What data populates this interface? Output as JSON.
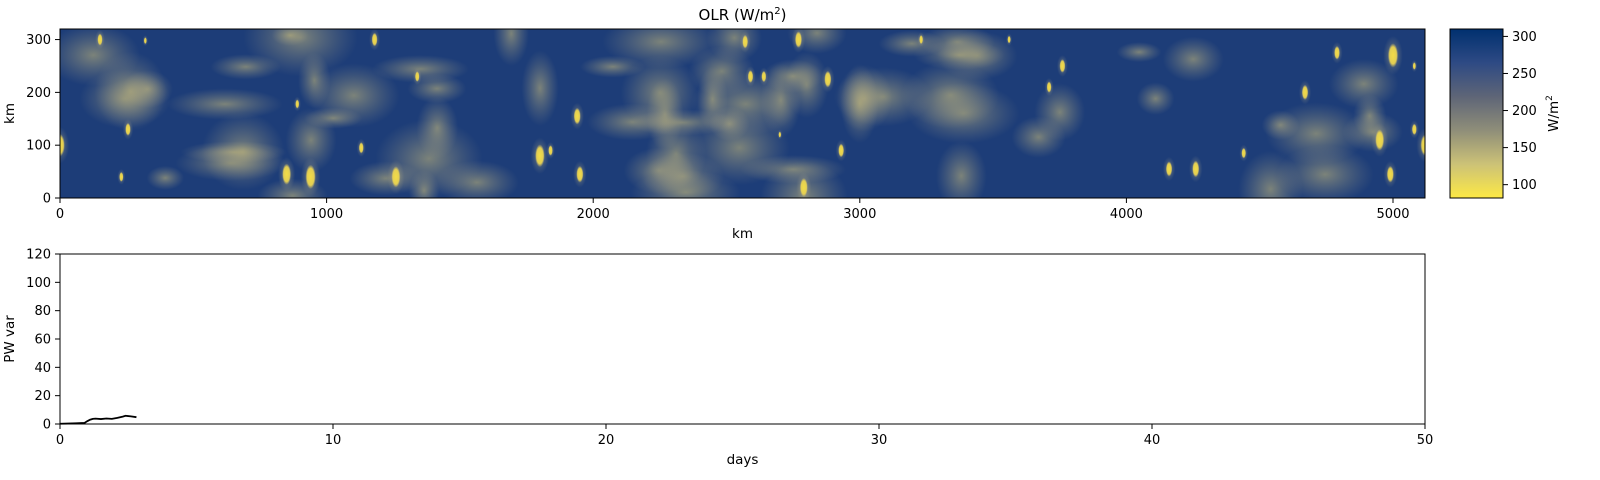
{
  "chart_data": [
    {
      "type": "heatmap",
      "title": "OLR (W/m",
      "title_sup": "2",
      "title_end": ")",
      "xlabel": "km",
      "ylabel": "km",
      "xlim": [
        0,
        5120
      ],
      "ylim": [
        0,
        320
      ],
      "xticks": [
        0,
        1000,
        2000,
        3000,
        4000,
        5000
      ],
      "yticks": [
        0,
        100,
        200,
        300
      ],
      "colormap": "cividis_r",
      "colormap_stops": [
        "#fde945",
        "#ccc277",
        "#8f8e79",
        "#5e6577",
        "#2e4a84",
        "#00306f"
      ],
      "colorbar": {
        "label": "W/m",
        "label_sup": "2",
        "range": [
          82,
          310
        ],
        "ticks": [
          100,
          150,
          200,
          250,
          300
        ]
      },
      "grid": false,
      "convective_cells": [
        {
          "x": 0,
          "y": 100,
          "r": 30
        },
        {
          "x": 150,
          "y": 300,
          "r": 16
        },
        {
          "x": 255,
          "y": 130,
          "r": 17
        },
        {
          "x": 230,
          "y": 40,
          "r": 13
        },
        {
          "x": 320,
          "y": 298,
          "r": 9
        },
        {
          "x": 850,
          "y": 45,
          "r": 28
        },
        {
          "x": 940,
          "y": 40,
          "r": 32
        },
        {
          "x": 890,
          "y": 178,
          "r": 12
        },
        {
          "x": 1180,
          "y": 300,
          "r": 18
        },
        {
          "x": 1260,
          "y": 40,
          "r": 28
        },
        {
          "x": 1130,
          "y": 95,
          "r": 15
        },
        {
          "x": 1340,
          "y": 230,
          "r": 14
        },
        {
          "x": 1800,
          "y": 80,
          "r": 30
        },
        {
          "x": 1840,
          "y": 90,
          "r": 14
        },
        {
          "x": 1940,
          "y": 155,
          "r": 22
        },
        {
          "x": 1950,
          "y": 45,
          "r": 22
        },
        {
          "x": 2570,
          "y": 296,
          "r": 18
        },
        {
          "x": 2590,
          "y": 230,
          "r": 17
        },
        {
          "x": 2640,
          "y": 230,
          "r": 15
        },
        {
          "x": 2770,
          "y": 300,
          "r": 22
        },
        {
          "x": 2790,
          "y": 20,
          "r": 25
        },
        {
          "x": 2880,
          "y": 225,
          "r": 22
        },
        {
          "x": 2930,
          "y": 90,
          "r": 18
        },
        {
          "x": 2700,
          "y": 120,
          "r": 8
        },
        {
          "x": 3230,
          "y": 300,
          "r": 12
        },
        {
          "x": 3560,
          "y": 300,
          "r": 10
        },
        {
          "x": 3710,
          "y": 210,
          "r": 15
        },
        {
          "x": 3760,
          "y": 250,
          "r": 18
        },
        {
          "x": 4160,
          "y": 55,
          "r": 20
        },
        {
          "x": 4260,
          "y": 55,
          "r": 22
        },
        {
          "x": 4440,
          "y": 85,
          "r": 14
        },
        {
          "x": 4670,
          "y": 200,
          "r": 20
        },
        {
          "x": 4790,
          "y": 275,
          "r": 18
        },
        {
          "x": 4950,
          "y": 110,
          "r": 28
        },
        {
          "x": 4990,
          "y": 45,
          "r": 22
        },
        {
          "x": 5000,
          "y": 270,
          "r": 32
        },
        {
          "x": 5080,
          "y": 130,
          "r": 15
        },
        {
          "x": 5120,
          "y": 100,
          "r": 28
        },
        {
          "x": 5080,
          "y": 250,
          "r": 10
        }
      ]
    },
    {
      "type": "line",
      "xlabel": "days",
      "ylabel": "PW var",
      "xlim": [
        0,
        50
      ],
      "ylim": [
        0,
        120
      ],
      "xticks": [
        0,
        10,
        20,
        30,
        40,
        50
      ],
      "yticks": [
        0,
        20,
        40,
        60,
        80,
        100,
        120
      ],
      "grid": false,
      "series": [
        {
          "color": "#000000",
          "x": [
            0,
            0.3,
            0.6,
            0.9,
            1.0,
            1.1,
            1.2,
            1.3,
            1.5,
            1.7,
            1.9,
            2.1,
            2.3,
            2.4,
            2.6,
            2.8
          ],
          "y": [
            0.2,
            0.3,
            0.5,
            0.8,
            2.0,
            3.0,
            3.6,
            3.8,
            3.5,
            3.9,
            3.6,
            4.3,
            5.2,
            5.8,
            5.4,
            4.8
          ]
        }
      ]
    }
  ]
}
